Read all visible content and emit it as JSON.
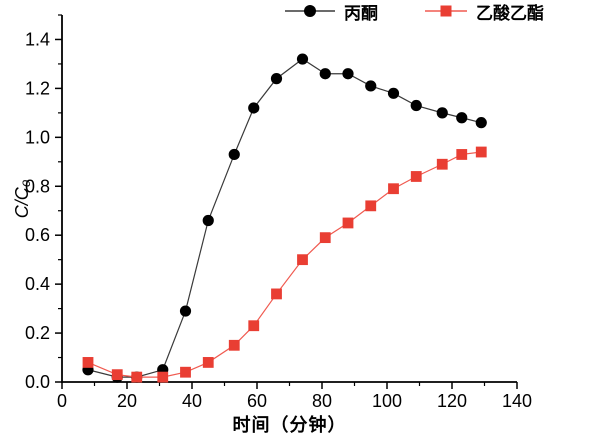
{
  "chart_data": {
    "type": "line",
    "title": "",
    "xlabel": "时间（分钟）",
    "ylabel": "C/C₀",
    "xlim": [
      0,
      140
    ],
    "ylim": [
      0,
      1.5
    ],
    "grid": false,
    "legend_position": "top",
    "x_major_ticks": [
      0,
      20,
      40,
      60,
      80,
      100,
      120,
      140
    ],
    "x_tick_labels": [
      "0",
      "20",
      "40",
      "60",
      "80",
      "100",
      "120",
      "140"
    ],
    "x_minor_step": 10,
    "y_major_ticks": [
      0,
      0.2,
      0.4,
      0.6,
      0.8,
      1.0,
      1.2,
      1.4
    ],
    "y_tick_labels": [
      "0.0",
      "0.2",
      "0.4",
      "0.6",
      "0.8",
      "1.0",
      "1.2",
      "1.4"
    ],
    "y_minor_step": 0.1,
    "x": [
      8,
      17,
      23,
      31,
      38,
      45,
      53,
      59,
      66,
      74,
      81,
      88,
      95,
      102,
      109,
      117,
      123,
      129
    ],
    "series": [
      {
        "name": "丙酮",
        "key": "acetone",
        "marker": "circle",
        "color": "#000000",
        "line_color": "#3a3a3a",
        "values": [
          0.05,
          0.02,
          0.02,
          0.05,
          0.29,
          0.66,
          0.93,
          1.12,
          1.24,
          1.32,
          1.26,
          1.26,
          1.21,
          1.18,
          1.13,
          1.1,
          1.08,
          1.06
        ]
      },
      {
        "name": "乙酸乙酯",
        "key": "ethyl-acetate",
        "marker": "square",
        "color": "#e93e33",
        "line_color": "#f05a50",
        "values": [
          0.08,
          0.03,
          0.02,
          0.02,
          0.04,
          0.08,
          0.15,
          0.23,
          0.36,
          0.5,
          0.59,
          0.65,
          0.72,
          0.79,
          0.84,
          0.89,
          0.93,
          0.94
        ]
      }
    ]
  }
}
